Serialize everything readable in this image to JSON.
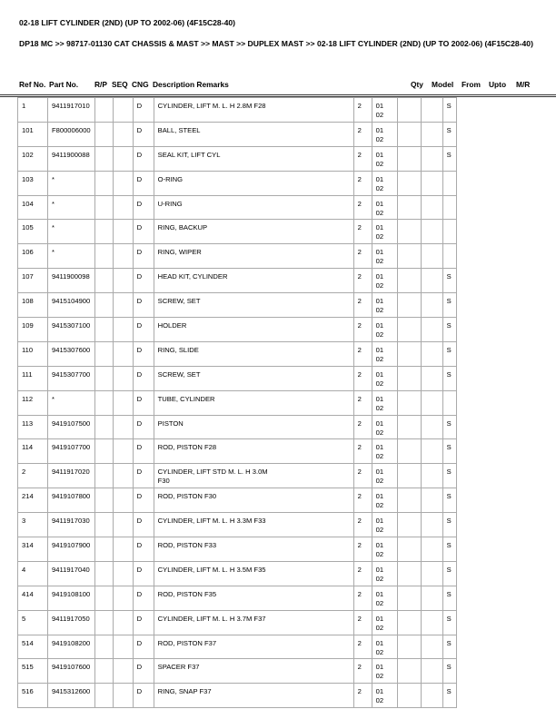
{
  "title": "02-18 LIFT CYLINDER (2ND) (UP TO 2002-06) (4F15C28-40)",
  "breadcrumb": "DP18 MC >> 98717-01130 CAT CHASSIS & MAST >> MAST >> DUPLEX MAST >> 02-18 LIFT CYLINDER (2ND) (UP TO 2002-06) (4F15C28-40)",
  "headers": [
    "Ref No.",
    "Part No.",
    "R/P",
    "SEQ",
    "CNG",
    "Description Remarks",
    "Qty",
    "Model",
    "From",
    "Upto",
    "M/R"
  ],
  "rows": [
    [
      "1",
      "9411917010",
      "",
      "",
      "D",
      "CYLINDER, LIFT M. L. H 2.8M F28",
      "2",
      "01\n02",
      "",
      "",
      "S"
    ],
    [
      "101",
      "F800006000",
      "",
      "",
      "D",
      "BALL, STEEL",
      "2",
      "01\n02",
      "",
      "",
      "S"
    ],
    [
      "102",
      "9411900088",
      "",
      "",
      "D",
      "SEAL KIT, LIFT CYL",
      "2",
      "01\n02",
      "",
      "",
      "S"
    ],
    [
      "103",
      "*",
      "",
      "",
      "D",
      "O-RING",
      "2",
      "01\n02",
      "",
      "",
      ""
    ],
    [
      "104",
      "*",
      "",
      "",
      "D",
      "U-RING",
      "2",
      "01\n02",
      "",
      "",
      ""
    ],
    [
      "105",
      "*",
      "",
      "",
      "D",
      "RING, BACKUP",
      "2",
      "01\n02",
      "",
      "",
      ""
    ],
    [
      "106",
      "*",
      "",
      "",
      "D",
      "RING, WIPER",
      "2",
      "01\n02",
      "",
      "",
      ""
    ],
    [
      "107",
      "9411900098",
      "",
      "",
      "D",
      "HEAD KIT, CYLINDER",
      "2",
      "01\n02",
      "",
      "",
      "S"
    ],
    [
      "108",
      "9415104900",
      "",
      "",
      "D",
      "SCREW, SET",
      "2",
      "01\n02",
      "",
      "",
      "S"
    ],
    [
      "109",
      "9415307100",
      "",
      "",
      "D",
      "HOLDER",
      "2",
      "01\n02",
      "",
      "",
      "S"
    ],
    [
      "110",
      "9415307600",
      "",
      "",
      "D",
      "RING, SLIDE",
      "2",
      "01\n02",
      "",
      "",
      "S"
    ],
    [
      "111",
      "9415307700",
      "",
      "",
      "D",
      "SCREW, SET",
      "2",
      "01\n02",
      "",
      "",
      "S"
    ],
    [
      "112",
      "*",
      "",
      "",
      "D",
      "TUBE, CYLINDER",
      "2",
      "01\n02",
      "",
      "",
      ""
    ],
    [
      "113",
      "9419107500",
      "",
      "",
      "D",
      "PISTON",
      "2",
      "01\n02",
      "",
      "",
      "S"
    ],
    [
      "114",
      "9419107700",
      "",
      "",
      "D",
      "ROD, PISTON F28",
      "2",
      "01\n02",
      "",
      "",
      "S"
    ],
    [
      "2",
      "9411917020",
      "",
      "",
      "D",
      "CYLINDER, LIFT STD M. L. H 3.0M\nF30",
      "2",
      "01\n02",
      "",
      "",
      "S"
    ],
    [
      "214",
      "9419107800",
      "",
      "",
      "D",
      "ROD, PISTON F30",
      "2",
      "01\n02",
      "",
      "",
      "S"
    ],
    [
      "3",
      "9411917030",
      "",
      "",
      "D",
      "CYLINDER, LIFT M. L. H 3.3M F33",
      "2",
      "01\n02",
      "",
      "",
      "S"
    ],
    [
      "314",
      "9419107900",
      "",
      "",
      "D",
      "ROD, PISTON F33",
      "2",
      "01\n02",
      "",
      "",
      "S"
    ],
    [
      "4",
      "9411917040",
      "",
      "",
      "D",
      "CYLINDER, LIFT M. L. H 3.5M F35",
      "2",
      "01\n02",
      "",
      "",
      "S"
    ],
    [
      "414",
      "9419108100",
      "",
      "",
      "D",
      "ROD, PISTON F35",
      "2",
      "01\n02",
      "",
      "",
      "S"
    ],
    [
      "5",
      "9411917050",
      "",
      "",
      "D",
      "CYLINDER, LIFT M. L. H 3.7M F37",
      "2",
      "01\n02",
      "",
      "",
      "S"
    ],
    [
      "514",
      "9419108200",
      "",
      "",
      "D",
      "ROD, PISTON F37",
      "2",
      "01\n02",
      "",
      "",
      "S"
    ],
    [
      "515",
      "9419107600",
      "",
      "",
      "D",
      "SPACER F37",
      "2",
      "01\n02",
      "",
      "",
      "S"
    ],
    [
      "516",
      "9415312600",
      "",
      "",
      "D",
      "RING, SNAP F37",
      "2",
      "01\n02",
      "",
      "",
      "S"
    ]
  ]
}
